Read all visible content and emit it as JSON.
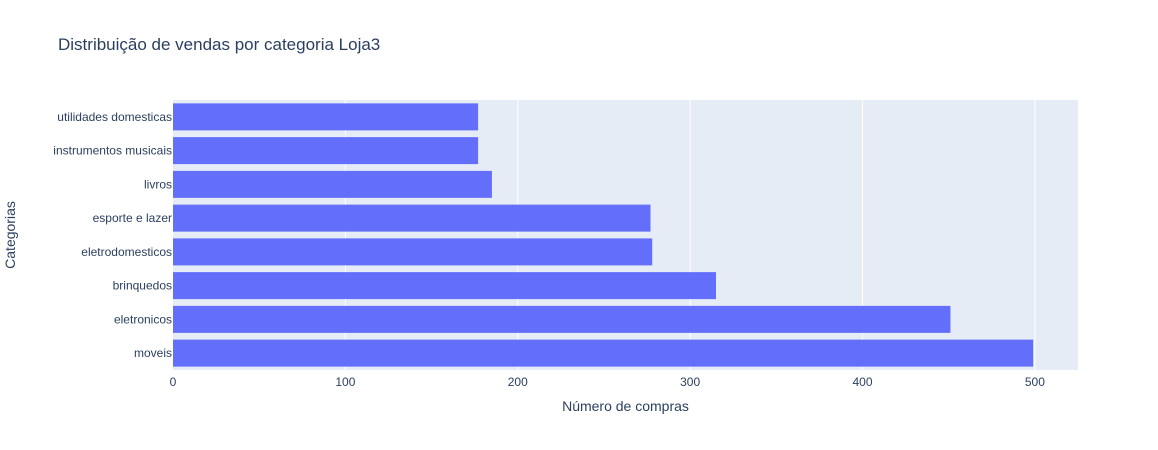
{
  "chart_data": {
    "type": "bar",
    "orientation": "horizontal",
    "title": "Distribuição de vendas por categoria Loja3",
    "xlabel": "Número de compras",
    "ylabel": "Categorias",
    "categories": [
      "moveis",
      "eletronicos",
      "brinquedos",
      "eletrodomesticos",
      "esporte e lazer",
      "livros",
      "instrumentos musicais",
      "utilidades domesticas"
    ],
    "values": [
      499,
      451,
      315,
      278,
      277,
      185,
      177,
      177
    ],
    "xlim": [
      0,
      525
    ],
    "xticks": [
      0,
      100,
      200,
      300,
      400,
      500
    ],
    "grid": true,
    "bar_color": "#636efa",
    "plot_bg": "#e5ecf6",
    "grid_color": "#ffffff"
  }
}
